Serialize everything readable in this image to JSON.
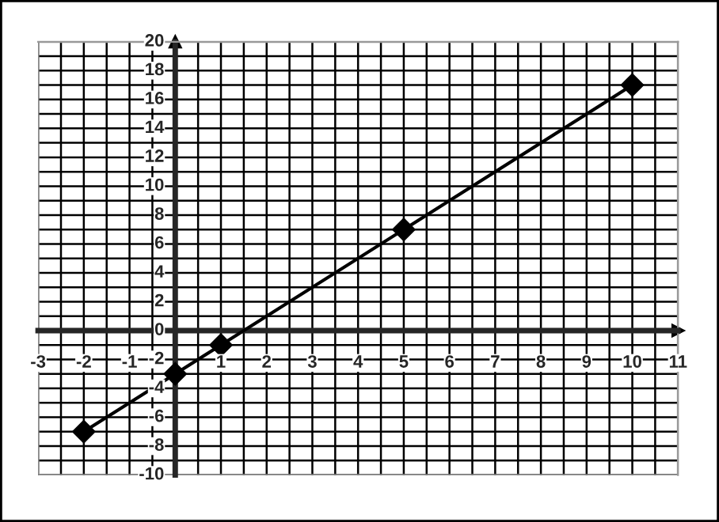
{
  "chart_data": {
    "type": "line",
    "x": [
      -2,
      0,
      1,
      5,
      10
    ],
    "series": [
      {
        "color": "#000000",
        "values": [
          -7,
          -3,
          -1,
          7,
          17
        ]
      }
    ],
    "xlim": [
      -3,
      11
    ],
    "ylim": [
      -10,
      20
    ],
    "xticks": [
      -3,
      -2,
      -1,
      {
        "value": 0,
        "label": null
      },
      1,
      2,
      3,
      4,
      5,
      6,
      7,
      8,
      9,
      10,
      11
    ],
    "yticks": [
      -10,
      -8,
      -6,
      -4,
      -2,
      0,
      2,
      4,
      6,
      8,
      10,
      12,
      14,
      16,
      18,
      20
    ],
    "grid": true,
    "marker": "diamond",
    "line_style": "solid"
  }
}
